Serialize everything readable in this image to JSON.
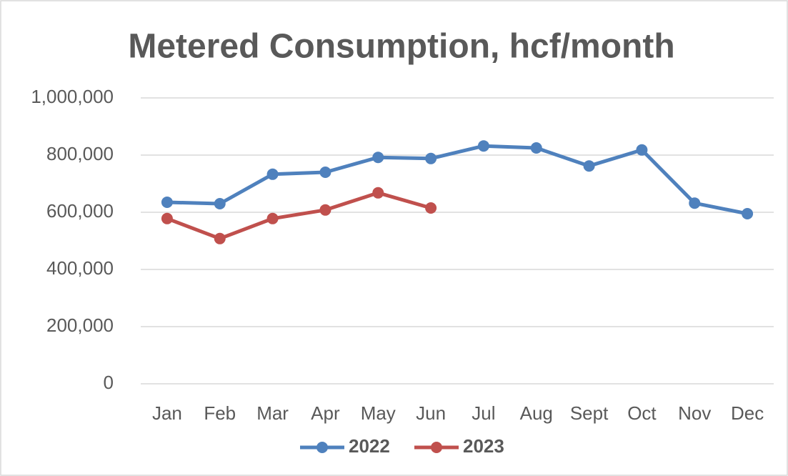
{
  "chart_data": {
    "type": "line",
    "title": "Metered Consumption, hcf/month",
    "categories": [
      "Jan",
      "Feb",
      "Mar",
      "Apr",
      "May",
      "Jun",
      "Jul",
      "Aug",
      "Sept",
      "Oct",
      "Nov",
      "Dec"
    ],
    "series": [
      {
        "name": "2022",
        "color": "#4f81bd",
        "values": [
          635000,
          630000,
          733000,
          740000,
          792000,
          788000,
          832000,
          825000,
          762000,
          818000,
          632000,
          595000
        ]
      },
      {
        "name": "2023",
        "color": "#c0504d",
        "values": [
          578000,
          508000,
          578000,
          608000,
          668000,
          615000,
          null,
          null,
          null,
          null,
          null,
          null
        ]
      }
    ],
    "ylim": [
      0,
      1000000
    ],
    "yticks": [
      0,
      {
        "value": 200000,
        "label": "200,000"
      },
      {
        "value": 400000,
        "label": "400,000"
      },
      {
        "value": 600000,
        "label": "600,000"
      },
      {
        "value": 800000,
        "label": "800,000"
      },
      {
        "value": 1000000,
        "label": "1,000,000"
      }
    ],
    "grid": true,
    "legend": "bottom"
  }
}
